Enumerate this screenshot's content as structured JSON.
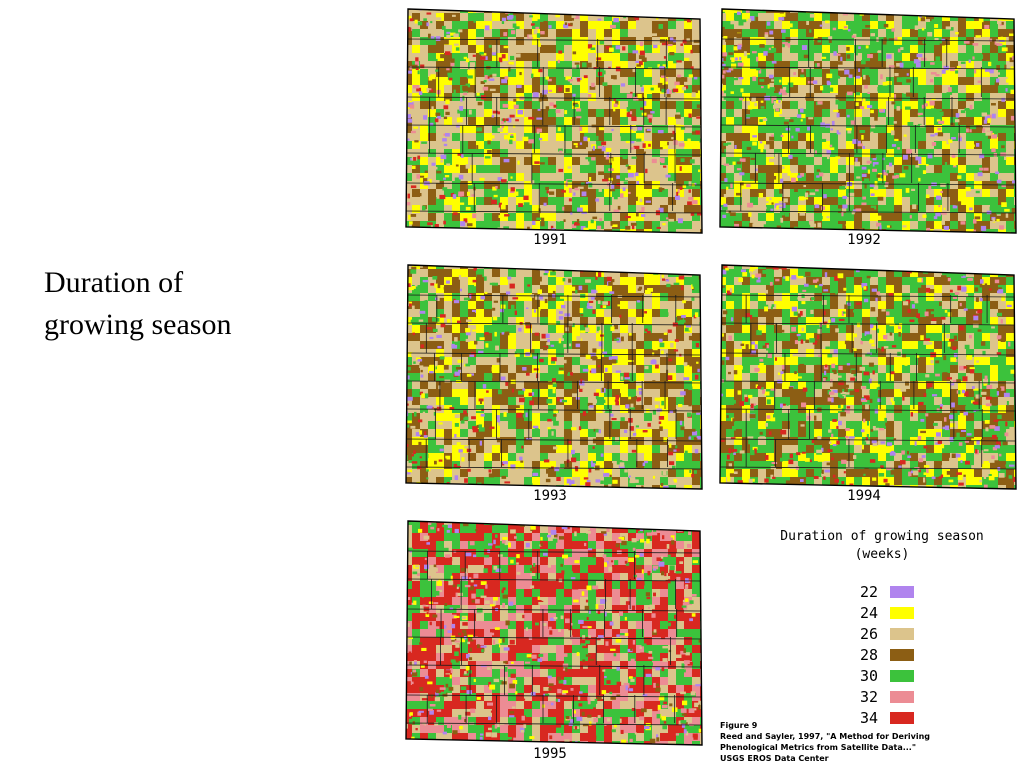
{
  "title_lines": [
    "Duration of",
    "growing season"
  ],
  "maps": [
    {
      "year": "1991",
      "dominant": [
        "26",
        "30",
        "28",
        "24"
      ],
      "accents": [
        "32",
        "34",
        "22"
      ]
    },
    {
      "year": "1992",
      "dominant": [
        "30",
        "28",
        "26",
        "24"
      ],
      "accents": [
        "32",
        "22"
      ]
    },
    {
      "year": "1993",
      "dominant": [
        "26",
        "28",
        "30",
        "24"
      ],
      "accents": [
        "22",
        "34"
      ]
    },
    {
      "year": "1994",
      "dominant": [
        "30",
        "28",
        "26",
        "24"
      ],
      "accents": [
        "34",
        "22",
        "32"
      ]
    },
    {
      "year": "1995",
      "dominant": [
        "34",
        "30",
        "32",
        "26"
      ],
      "accents": [
        "24",
        "22",
        "28"
      ]
    }
  ],
  "legend": {
    "title_lines": [
      "Duration of growing season",
      "(weeks)"
    ],
    "items": [
      {
        "value": "22",
        "color": "#b084ee"
      },
      {
        "value": "24",
        "color": "#ffff00"
      },
      {
        "value": "26",
        "color": "#dcc48c"
      },
      {
        "value": "28",
        "color": "#8c5e14"
      },
      {
        "value": "30",
        "color": "#3cc23c"
      },
      {
        "value": "32",
        "color": "#ec8c94"
      },
      {
        "value": "34",
        "color": "#d82820"
      }
    ]
  },
  "citation": {
    "lines": [
      "Figure 9",
      "Reed and Sayler, 1997, \"A Method for Deriving",
      "Phenological Metrics from Satellite Data...\"",
      "USGS EROS Data Center"
    ]
  }
}
